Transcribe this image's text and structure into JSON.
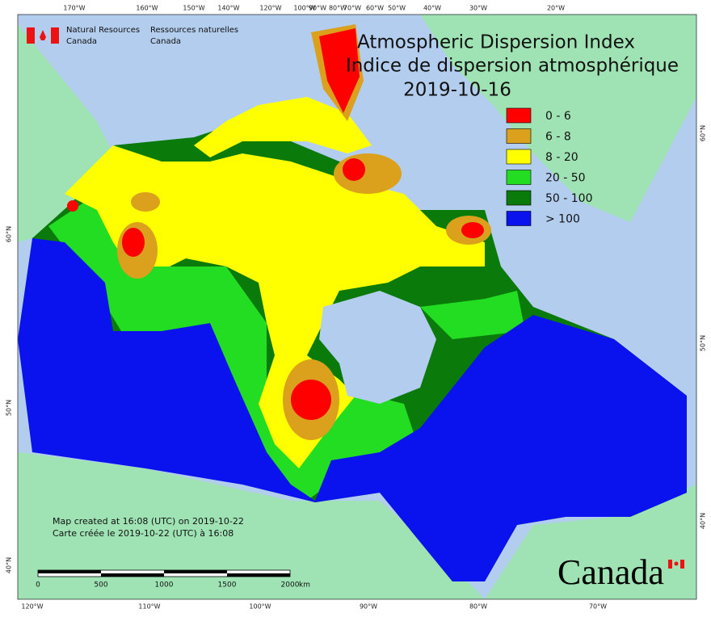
{
  "header": {
    "org_en": [
      "Natural Resources",
      "Canada"
    ],
    "org_fr": [
      "Ressources naturelles",
      "Canada"
    ]
  },
  "title": [
    "Atmospheric Dispersion Index",
    "Indice de dispersion atmosphérique"
  ],
  "date": "2019-10-16",
  "legend": [
    {
      "label": "0 - 6",
      "color": "#ff0000"
    },
    {
      "label": "6 - 8",
      "color": "#dba01c"
    },
    {
      "label": "8 - 20",
      "color": "#ffff00"
    },
    {
      "label": "20 - 50",
      "color": "#22dd22"
    },
    {
      "label": "50 - 100",
      "color": "#0a7a0a"
    },
    {
      "label": "> 100",
      "color": "#0a12ee"
    }
  ],
  "graticule": {
    "top": [
      "170°W",
      "160°W",
      "150°W",
      "140°W",
      "120°W",
      "100°W",
      "90°W",
      "80°W",
      "70°W",
      "60°W",
      "50°W",
      "40°W",
      "30°W",
      "20°W"
    ],
    "bottom": [
      "120°W",
      "110°W",
      "100°W",
      "90°W",
      "80°W",
      "70°W"
    ],
    "left": [
      "60°N",
      "50°N",
      "40°N"
    ],
    "right": [
      "60°N",
      "50°N",
      "40°N"
    ]
  },
  "credits": [
    "Map created at 16:08 (UTC) on 2019-10-22",
    "Carte créée le 2019-10-22 (UTC) à 16:08"
  ],
  "scale_bar": {
    "ticks": [
      "0",
      "500",
      "1000",
      "1500",
      "2000"
    ],
    "unit": "km"
  },
  "wordmark": "Canada"
}
